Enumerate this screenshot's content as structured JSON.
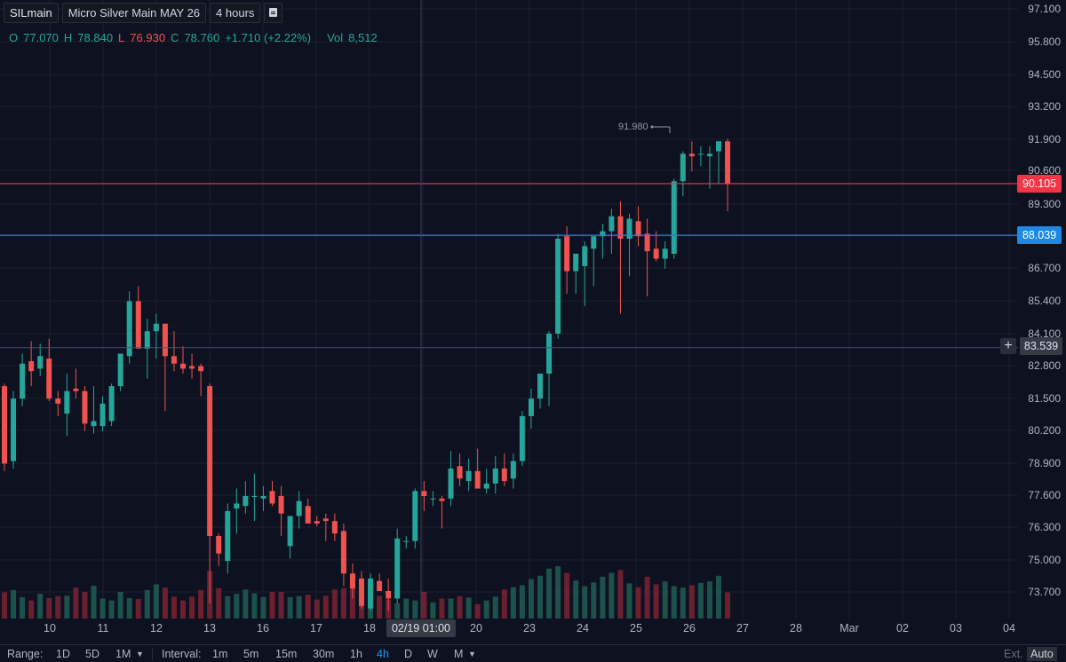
{
  "symbol_bar": {
    "symbol": "SILmain",
    "description": "Micro Silver Main MAY 26",
    "interval": "4 hours",
    "icon": "legend-toggle-icon"
  },
  "ohlc": {
    "o_label": "O",
    "o_value": "77.070",
    "h_label": "H",
    "h_value": "78.840",
    "l_label": "L",
    "l_value": "76.930",
    "c_label": "C",
    "c_value": "78.760",
    "change": "+1.710 (+2.22%)",
    "vol_label": "Vol",
    "vol_value": "8,512"
  },
  "colors": {
    "background": "#0e1120",
    "up": "#26a69a",
    "down": "#ef5350",
    "red_line": "#f23645",
    "blue_line": "#2962ff",
    "grid": "#1b1f2e"
  },
  "price_axis": {
    "ticks": [
      "97.100",
      "95.800",
      "94.500",
      "93.200",
      "91.900",
      "90.600",
      "89.300",
      "86.700",
      "85.400",
      "84.100",
      "82.800",
      "81.500",
      "80.200",
      "78.900",
      "77.600",
      "76.300",
      "75.000",
      "73.700"
    ],
    "labels": {
      "red_line": "90.105",
      "blue_line": "88.039",
      "crosshair": "83.539"
    },
    "plus_icon": "+"
  },
  "time_axis": {
    "ticks": [
      "10",
      "11",
      "12",
      "13",
      "16",
      "17",
      "18",
      "20",
      "23",
      "24",
      "25",
      "26",
      "27",
      "28",
      "Mar",
      "02",
      "03",
      "04"
    ],
    "crosshair_label": "02/19 01:00"
  },
  "peak_marker": "91.980",
  "bottom_bar": {
    "range_label": "Range:",
    "ranges": [
      "1D",
      "5D",
      "1M"
    ],
    "interval_label": "Interval:",
    "intervals": [
      "1m",
      "5m",
      "15m",
      "30m",
      "1h",
      "4h",
      "D",
      "W",
      "M"
    ],
    "active_interval": "4h",
    "ext": "Ext.",
    "auto": "Auto"
  },
  "chart_data": {
    "type": "candlestick",
    "ylim": [
      73.0,
      97.5
    ],
    "candles": [
      {
        "o": 82.0,
        "h": 82.1,
        "l": 78.6,
        "c": 78.9
      },
      {
        "o": 79.0,
        "h": 81.8,
        "l": 78.7,
        "c": 81.5
      },
      {
        "o": 81.5,
        "h": 83.3,
        "l": 81.2,
        "c": 82.9
      },
      {
        "o": 83.0,
        "h": 83.8,
        "l": 82.0,
        "c": 82.6
      },
      {
        "o": 82.7,
        "h": 83.7,
        "l": 82.4,
        "c": 83.2
      },
      {
        "o": 83.1,
        "h": 83.9,
        "l": 81.4,
        "c": 81.5
      },
      {
        "o": 81.5,
        "h": 81.8,
        "l": 80.8,
        "c": 81.3
      },
      {
        "o": 80.9,
        "h": 82.5,
        "l": 80.0,
        "c": 81.8
      },
      {
        "o": 81.9,
        "h": 82.7,
        "l": 81.5,
        "c": 81.8
      },
      {
        "o": 81.8,
        "h": 82.0,
        "l": 80.2,
        "c": 80.5
      },
      {
        "o": 80.4,
        "h": 82.0,
        "l": 80.1,
        "c": 80.6
      },
      {
        "o": 80.4,
        "h": 81.6,
        "l": 80.2,
        "c": 81.3
      },
      {
        "o": 80.6,
        "h": 82.1,
        "l": 80.4,
        "c": 82.0
      },
      {
        "o": 82.0,
        "h": 83.3,
        "l": 81.8,
        "c": 83.3
      },
      {
        "o": 83.2,
        "h": 85.8,
        "l": 82.9,
        "c": 85.4
      },
      {
        "o": 85.4,
        "h": 86.0,
        "l": 83.5,
        "c": 83.5
      },
      {
        "o": 83.5,
        "h": 84.7,
        "l": 82.3,
        "c": 84.2
      },
      {
        "o": 84.2,
        "h": 84.9,
        "l": 83.1,
        "c": 84.5
      },
      {
        "o": 84.5,
        "h": 84.5,
        "l": 81.0,
        "c": 83.2
      },
      {
        "o": 83.2,
        "h": 84.2,
        "l": 82.6,
        "c": 82.9
      },
      {
        "o": 82.9,
        "h": 83.6,
        "l": 82.5,
        "c": 82.7
      },
      {
        "o": 82.8,
        "h": 83.3,
        "l": 82.3,
        "c": 82.7
      },
      {
        "o": 82.8,
        "h": 82.9,
        "l": 81.6,
        "c": 82.6
      },
      {
        "o": 82.0,
        "h": 82.1,
        "l": 73.3,
        "c": 76.0
      },
      {
        "o": 76.0,
        "h": 76.1,
        "l": 74.8,
        "c": 75.3
      },
      {
        "o": 75.0,
        "h": 77.3,
        "l": 74.5,
        "c": 77.0
      },
      {
        "o": 77.1,
        "h": 77.9,
        "l": 76.1,
        "c": 77.3
      },
      {
        "o": 77.2,
        "h": 78.2,
        "l": 76.9,
        "c": 77.6
      },
      {
        "o": 77.6,
        "h": 78.5,
        "l": 76.6,
        "c": 77.6
      },
      {
        "o": 77.5,
        "h": 78.0,
        "l": 77.0,
        "c": 77.6
      },
      {
        "o": 77.8,
        "h": 78.2,
        "l": 77.2,
        "c": 77.3
      },
      {
        "o": 77.6,
        "h": 78.0,
        "l": 76.0,
        "c": 76.9
      },
      {
        "o": 75.6,
        "h": 76.8,
        "l": 75.1,
        "c": 76.8
      },
      {
        "o": 76.8,
        "h": 77.8,
        "l": 76.3,
        "c": 77.4
      },
      {
        "o": 77.2,
        "h": 77.5,
        "l": 76.5,
        "c": 76.5
      },
      {
        "o": 76.6,
        "h": 76.8,
        "l": 76.4,
        "c": 76.5
      },
      {
        "o": 76.7,
        "h": 76.9,
        "l": 75.8,
        "c": 76.6
      },
      {
        "o": 76.6,
        "h": 76.9,
        "l": 75.8,
        "c": 76.1
      },
      {
        "o": 76.2,
        "h": 76.5,
        "l": 74.0,
        "c": 74.5
      },
      {
        "o": 74.5,
        "h": 74.9,
        "l": 73.5,
        "c": 73.9
      },
      {
        "o": 74.3,
        "h": 74.6,
        "l": 73.1,
        "c": 73.2
      },
      {
        "o": 73.1,
        "h": 74.5,
        "l": 73.0,
        "c": 74.3
      },
      {
        "o": 74.2,
        "h": 74.5,
        "l": 73.8,
        "c": 73.8
      },
      {
        "o": 73.8,
        "h": 74.3,
        "l": 73.0,
        "c": 73.5
      },
      {
        "o": 73.5,
        "h": 76.3,
        "l": 73.3,
        "c": 75.9
      },
      {
        "o": 75.8,
        "h": 76.0,
        "l": 75.5,
        "c": 75.8
      },
      {
        "o": 75.8,
        "h": 77.9,
        "l": 75.5,
        "c": 77.8
      },
      {
        "o": 77.8,
        "h": 78.2,
        "l": 77.0,
        "c": 77.6
      },
      {
        "o": 77.5,
        "h": 77.8,
        "l": 77.2,
        "c": 77.5
      },
      {
        "o": 77.5,
        "h": 77.6,
        "l": 76.3,
        "c": 77.4
      },
      {
        "o": 77.5,
        "h": 79.4,
        "l": 77.2,
        "c": 78.7
      },
      {
        "o": 78.8,
        "h": 79.3,
        "l": 78.0,
        "c": 78.3
      },
      {
        "o": 78.2,
        "h": 79.1,
        "l": 77.8,
        "c": 78.6
      },
      {
        "o": 78.6,
        "h": 79.5,
        "l": 77.9,
        "c": 77.9
      },
      {
        "o": 77.9,
        "h": 78.7,
        "l": 77.7,
        "c": 78.1
      },
      {
        "o": 78.1,
        "h": 79.2,
        "l": 77.7,
        "c": 78.7
      },
      {
        "o": 78.7,
        "h": 79.3,
        "l": 78.0,
        "c": 78.2
      },
      {
        "o": 78.3,
        "h": 79.3,
        "l": 77.9,
        "c": 79.0
      },
      {
        "o": 79.0,
        "h": 81.0,
        "l": 78.8,
        "c": 80.8
      },
      {
        "o": 80.8,
        "h": 81.9,
        "l": 80.3,
        "c": 81.5
      },
      {
        "o": 81.5,
        "h": 82.5,
        "l": 81.1,
        "c": 82.5
      },
      {
        "o": 82.5,
        "h": 84.2,
        "l": 81.2,
        "c": 84.1
      },
      {
        "o": 84.1,
        "h": 88.1,
        "l": 83.9,
        "c": 87.9
      },
      {
        "o": 88.0,
        "h": 88.4,
        "l": 85.7,
        "c": 86.6
      },
      {
        "o": 86.6,
        "h": 87.1,
        "l": 85.7,
        "c": 87.3
      },
      {
        "o": 86.8,
        "h": 87.8,
        "l": 85.2,
        "c": 87.6
      },
      {
        "o": 87.5,
        "h": 88.0,
        "l": 86.0,
        "c": 88.0
      },
      {
        "o": 88.0,
        "h": 88.5,
        "l": 87.1,
        "c": 88.2
      },
      {
        "o": 88.2,
        "h": 89.1,
        "l": 87.3,
        "c": 88.8
      },
      {
        "o": 88.8,
        "h": 89.4,
        "l": 84.9,
        "c": 87.9
      },
      {
        "o": 87.9,
        "h": 88.9,
        "l": 86.4,
        "c": 88.7
      },
      {
        "o": 88.6,
        "h": 89.2,
        "l": 87.6,
        "c": 88.0
      },
      {
        "o": 88.1,
        "h": 88.7,
        "l": 85.6,
        "c": 87.4
      },
      {
        "o": 87.5,
        "h": 88.2,
        "l": 87.0,
        "c": 87.1
      },
      {
        "o": 87.1,
        "h": 87.8,
        "l": 86.7,
        "c": 87.5
      },
      {
        "o": 87.3,
        "h": 90.3,
        "l": 87.1,
        "c": 90.2
      },
      {
        "o": 90.2,
        "h": 91.4,
        "l": 89.6,
        "c": 91.3
      },
      {
        "o": 91.3,
        "h": 91.8,
        "l": 90.6,
        "c": 91.2
      },
      {
        "o": 91.3,
        "h": 91.6,
        "l": 90.8,
        "c": 91.3
      },
      {
        "o": 91.2,
        "h": 91.6,
        "l": 89.9,
        "c": 91.3
      },
      {
        "o": 91.4,
        "h": 91.8,
        "l": 90.1,
        "c": 91.8
      },
      {
        "o": 91.8,
        "h": 91.9,
        "l": 89.0,
        "c": 90.1
      }
    ],
    "volumes": [
      550,
      600,
      450,
      380,
      520,
      430,
      470,
      480,
      650,
      560,
      690,
      420,
      380,
      560,
      430,
      410,
      600,
      720,
      650,
      460,
      380,
      460,
      600,
      1000,
      640,
      470,
      520,
      610,
      530,
      450,
      560,
      560,
      450,
      470,
      500,
      400,
      480,
      610,
      640,
      640,
      530,
      480,
      480,
      400,
      320,
      420,
      380,
      560,
      340,
      420,
      420,
      470,
      440,
      300,
      380,
      460,
      610,
      660,
      700,
      830,
      900,
      1050,
      1100,
      960,
      800,
      680,
      760,
      880,
      960,
      1020,
      740,
      660,
      880,
      720,
      780,
      680,
      650,
      700,
      750,
      780,
      900,
      550
    ],
    "horizontal_lines": [
      {
        "price": 90.105,
        "color": "#f23645"
      },
      {
        "price": 88.039,
        "color": "#2962ff"
      }
    ],
    "crosshair": {
      "price": 83.539,
      "time_label": "02/19 01:00"
    },
    "grid": true
  }
}
